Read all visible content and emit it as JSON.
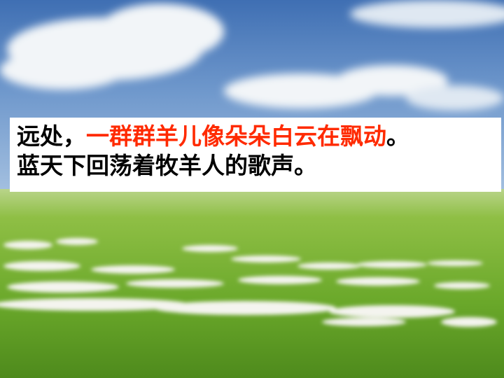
{
  "slide": {
    "background": "photo-sky-clouds-grassland-sheep-flock",
    "caption": {
      "line1_black": "远处，",
      "line1_red": "一群群羊儿像朵朵白云在飘动",
      "line1_end": "。",
      "line2": "蓝天下回荡着牧羊人的歌声。",
      "red_color": "#ff2a00"
    }
  }
}
